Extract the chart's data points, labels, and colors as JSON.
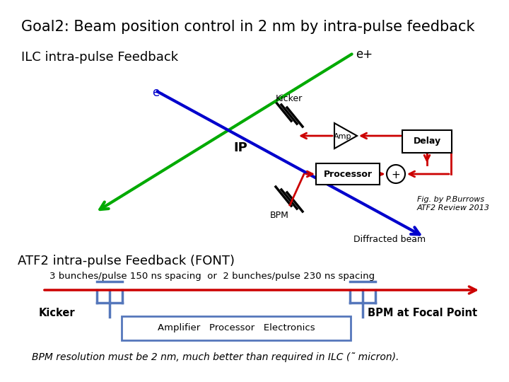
{
  "title": "Goal2: Beam position control in 2 nm by intra-pulse feedback",
  "ilc_label": "ILC intra-pulse Feedback",
  "atf2_label": "ATF2 intra-pulse Feedback (FONT)",
  "spacing_label": "3 bunches/pulse 150 ns spacing  or  2 bunches/pulse 230 ns spacing",
  "bpm_label": "BPM resolution must be 2 nm, much better than required in ILC (˜ micron).",
  "fig_credit": "Fig. by P.Burrows\nATF2 Review 2013",
  "kicker_label": "Kicker",
  "bpm_focal_label": "BPM at Focal Point",
  "amp_processor_label": "Amplifier   Processor   Electronics",
  "ep_label": "e+",
  "em_label": "e-",
  "ip_label": "IP",
  "kicker_tag": "Kicker",
  "bpm_tag": "BPM",
  "diffracted_label": "Diffracted beam",
  "bg_color": "#ffffff",
  "green_color": "#00aa00",
  "blue_color": "#0000cc",
  "red_color": "#cc0000",
  "black_color": "#000000",
  "blue_bracket_color": "#5577bb"
}
